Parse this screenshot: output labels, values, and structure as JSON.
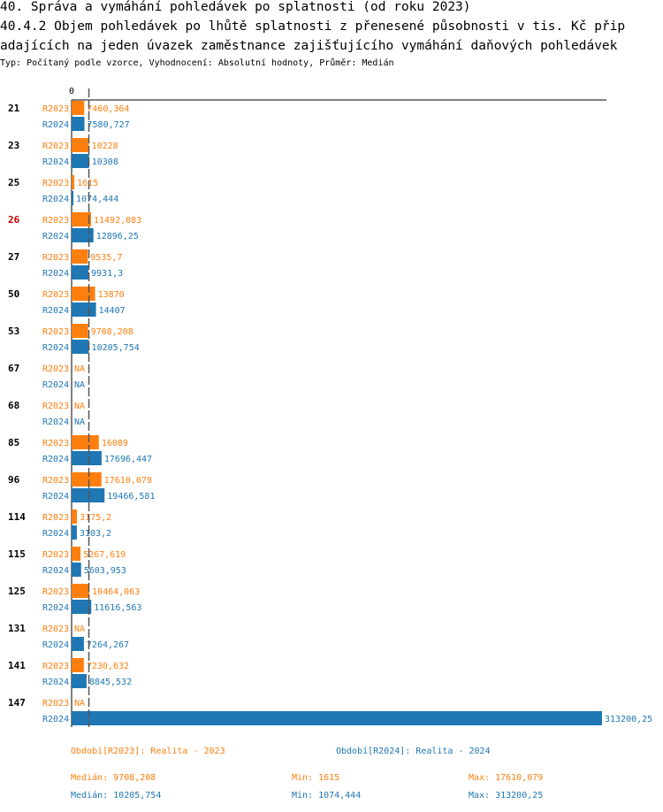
{
  "title_line1": "40. Správa a vymáhání pohledávek po splatnosti (od roku 2023)",
  "title_line2": "40.4.2 Objem pohledávek po lhůtě splatnosti z přenesené působnosti v tis. Kč přip",
  "title_line3": "adajících na jeden úvazek zaměstnance zajišťujícího vymáhání daňových pohledávek",
  "subtitle": "Typ: Počítaný podle vzorce, Vyhodnocení: Absolutní hodnoty, Průměr: Medián",
  "colors": {
    "s2023": "#ff7f0e",
    "s2024": "#1f77b4",
    "highlight": "#cc0000"
  },
  "chart_data": {
    "type": "bar",
    "orientation": "horizontal",
    "zero_label": "0",
    "xlim": [
      0,
      313200.25
    ],
    "median_line": 10205.754,
    "highlight_category": "26",
    "categories": [
      "21",
      "23",
      "25",
      "26",
      "27",
      "50",
      "53",
      "67",
      "68",
      "85",
      "96",
      "114",
      "115",
      "125",
      "131",
      "141",
      "147"
    ],
    "series": [
      {
        "name": "R2023",
        "values": [
          7460.364,
          10228,
          1615,
          11492.083,
          9535.7,
          13870,
          9708.208,
          null,
          null,
          16089,
          17610.079,
          3175.2,
          5267.619,
          10464.063,
          null,
          7230.632,
          null
        ],
        "labels": [
          "7460,364",
          "10228",
          "1615",
          "11492,083",
          "9535,7",
          "13870",
          "9708,208",
          "NA",
          "NA",
          "16089",
          "17610,079",
          "3175,2",
          "5267,619",
          "10464,063",
          "NA",
          "7230,632",
          "NA"
        ]
      },
      {
        "name": "R2024",
        "values": [
          7580.727,
          10308,
          1074.444,
          12896.25,
          9931.3,
          14407,
          10205.754,
          null,
          null,
          17696.447,
          19466.581,
          3103.2,
          5603.953,
          11616.563,
          7264.267,
          8845.532,
          313200.25
        ],
        "labels": [
          "7580,727",
          "10308",
          "1074,444",
          "12896,25",
          "9931,3",
          "14407",
          "10205,754",
          "NA",
          "NA",
          "17696,447",
          "19466,581",
          "3103,2",
          "5603,953",
          "11616,563",
          "7264,267",
          "8845,532",
          "313200,25"
        ]
      }
    ]
  },
  "legend": {
    "r2023": "Období[R2023]: Realita - 2023",
    "r2024": "Období[R2024]: Realita - 2024"
  },
  "stats": {
    "r2023": {
      "median": "Medián: 9708,208",
      "min": "Min: 1615",
      "max": "Max: 17610,079"
    },
    "r2024": {
      "median": "Medián: 10205,754",
      "min": "Min: 1074,444",
      "max": "Max: 313200,25"
    }
  }
}
